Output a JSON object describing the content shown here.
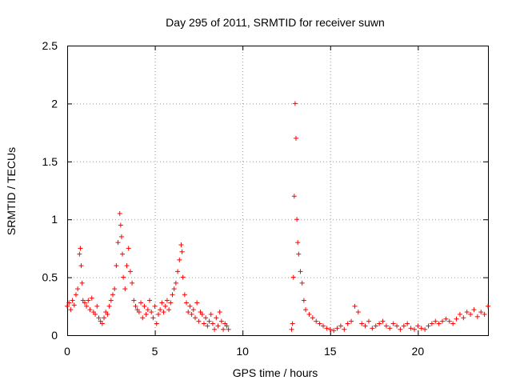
{
  "chart_data": {
    "type": "scatter",
    "title": "Day 295 of 2011, SRMTID for receiver suwn",
    "xlabel": "GPS time / hours",
    "ylabel": "SRMTID / TECUs",
    "xlim": [
      0,
      24
    ],
    "ylim": [
      0,
      2.5
    ],
    "xticks": [
      0,
      5,
      10,
      15,
      20
    ],
    "xtick_labels": [
      "0",
      "5",
      "10",
      "15",
      "20"
    ],
    "yticks": [
      0,
      0.5,
      1,
      1.5,
      2,
      2.5
    ],
    "ytick_labels": [
      "0",
      "0.5",
      "1",
      "1.5",
      "2",
      "2.5"
    ],
    "grid": true,
    "marker": "+",
    "color": "#ff0000",
    "series": [
      {
        "name": "SRMTID",
        "x": [
          0.0,
          0.1,
          0.2,
          0.3,
          0.4,
          0.5,
          0.6,
          0.7,
          0.75,
          0.8,
          0.85,
          0.9,
          1.0,
          1.1,
          1.2,
          1.3,
          1.4,
          1.5,
          1.6,
          1.7,
          1.8,
          1.9,
          2.0,
          2.1,
          2.2,
          2.3,
          2.4,
          2.5,
          2.6,
          2.7,
          2.8,
          2.9,
          3.0,
          3.05,
          3.1,
          3.15,
          3.2,
          3.3,
          3.4,
          3.5,
          3.6,
          3.7,
          3.8,
          3.9,
          4.0,
          4.1,
          4.2,
          4.3,
          4.4,
          4.5,
          4.6,
          4.7,
          4.8,
          4.9,
          5.0,
          5.1,
          5.2,
          5.3,
          5.4,
          5.5,
          5.6,
          5.7,
          5.8,
          5.9,
          6.0,
          6.1,
          6.2,
          6.3,
          6.4,
          6.5,
          6.55,
          6.6,
          6.7,
          6.8,
          6.9,
          7.0,
          7.1,
          7.2,
          7.3,
          7.4,
          7.5,
          7.6,
          7.7,
          7.8,
          7.9,
          8.0,
          8.1,
          8.2,
          8.3,
          8.4,
          8.5,
          8.6,
          8.7,
          8.8,
          8.9,
          9.0,
          9.1,
          9.2,
          12.8,
          12.85,
          12.9,
          12.95,
          13.0,
          13.05,
          13.1,
          13.15,
          13.2,
          13.3,
          13.4,
          13.5,
          13.6,
          13.8,
          14.0,
          14.2,
          14.4,
          14.6,
          14.8,
          15.0,
          15.2,
          15.4,
          15.6,
          15.8,
          16.0,
          16.2,
          16.4,
          16.6,
          16.8,
          17.0,
          17.2,
          17.4,
          17.6,
          17.8,
          18.0,
          18.2,
          18.4,
          18.6,
          18.8,
          19.0,
          19.2,
          19.4,
          19.6,
          19.8,
          20.0,
          20.2,
          20.4,
          20.6,
          20.8,
          21.0,
          21.2,
          21.4,
          21.6,
          21.8,
          22.0,
          22.2,
          22.4,
          22.6,
          22.8,
          23.0,
          23.2,
          23.4,
          23.6,
          23.8,
          24.0
        ],
        "y": [
          0.25,
          0.28,
          0.22,
          0.3,
          0.26,
          0.35,
          0.4,
          0.7,
          0.75,
          0.6,
          0.45,
          0.3,
          0.28,
          0.25,
          0.3,
          0.22,
          0.32,
          0.2,
          0.18,
          0.25,
          0.15,
          0.12,
          0.1,
          0.15,
          0.2,
          0.18,
          0.25,
          0.3,
          0.35,
          0.4,
          0.6,
          0.8,
          1.05,
          0.95,
          0.85,
          0.7,
          0.5,
          0.4,
          0.6,
          0.75,
          0.55,
          0.45,
          0.3,
          0.25,
          0.22,
          0.2,
          0.28,
          0.15,
          0.25,
          0.18,
          0.22,
          0.3,
          0.2,
          0.15,
          0.25,
          0.1,
          0.18,
          0.22,
          0.28,
          0.2,
          0.25,
          0.3,
          0.22,
          0.28,
          0.35,
          0.4,
          0.45,
          0.55,
          0.65,
          0.78,
          0.72,
          0.5,
          0.35,
          0.28,
          0.2,
          0.25,
          0.18,
          0.22,
          0.15,
          0.28,
          0.12,
          0.2,
          0.18,
          0.1,
          0.15,
          0.08,
          0.12,
          0.18,
          0.1,
          0.05,
          0.15,
          0.08,
          0.2,
          0.12,
          0.05,
          0.1,
          0.08,
          0.05,
          0.05,
          0.1,
          0.5,
          1.2,
          2.0,
          1.7,
          1.0,
          0.8,
          0.7,
          0.55,
          0.45,
          0.3,
          0.22,
          0.18,
          0.15,
          0.12,
          0.1,
          0.08,
          0.06,
          0.05,
          0.04,
          0.06,
          0.08,
          0.05,
          0.1,
          0.12,
          0.25,
          0.2,
          0.1,
          0.08,
          0.12,
          0.06,
          0.08,
          0.1,
          0.12,
          0.08,
          0.06,
          0.1,
          0.08,
          0.05,
          0.08,
          0.1,
          0.06,
          0.05,
          0.08,
          0.06,
          0.05,
          0.08,
          0.1,
          0.12,
          0.1,
          0.12,
          0.14,
          0.12,
          0.1,
          0.14,
          0.18,
          0.15,
          0.2,
          0.18,
          0.22,
          0.16,
          0.2,
          0.18,
          0.25
        ]
      }
    ]
  }
}
